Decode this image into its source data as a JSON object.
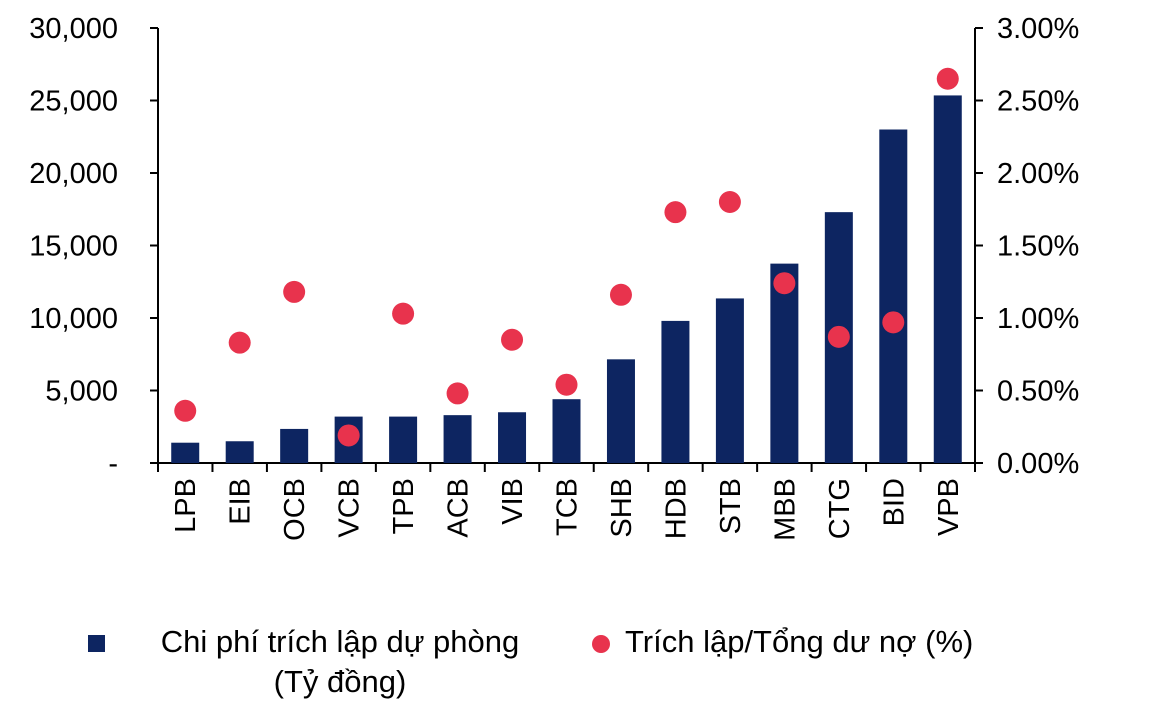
{
  "chart_data": {
    "type": "bar",
    "categories": [
      "LPB",
      "EIB",
      "OCB",
      "VCB",
      "TPB",
      "ACB",
      "VIB",
      "TCB",
      "SHB",
      "HDB",
      "STB",
      "MBB",
      "CTG",
      "BID",
      "VPB"
    ],
    "series": [
      {
        "name": "Chi phí trích lập dự phòng (Tỷ đồng)",
        "type": "bar",
        "axis": "left",
        "color": "#0d2561",
        "values": [
          1400,
          1500,
          2350,
          3200,
          3200,
          3300,
          3500,
          4400,
          7150,
          9800,
          11350,
          13750,
          17300,
          23000,
          25350
        ]
      },
      {
        "name": "Trích lập/Tổng dư nợ (%)",
        "type": "scatter",
        "axis": "right",
        "color": "#e8334d",
        "values": [
          0.36,
          0.83,
          1.18,
          0.19,
          1.03,
          0.48,
          0.85,
          0.54,
          1.16,
          1.73,
          1.8,
          1.24,
          0.87,
          0.97,
          2.65
        ]
      }
    ],
    "y_left": {
      "ylim": [
        0,
        30000
      ],
      "ticks": [
        0,
        5000,
        10000,
        15000,
        20000,
        25000,
        30000
      ],
      "tick_labels": [
        "-",
        "5,000",
        "10,000",
        "15,000",
        "20,000",
        "25,000",
        "30,000"
      ]
    },
    "y_right": {
      "ylim": [
        0,
        3.0
      ],
      "ticks": [
        0,
        0.5,
        1.0,
        1.5,
        2.0,
        2.5,
        3.0
      ],
      "tick_labels": [
        "0.00%",
        "0.50%",
        "1.00%",
        "1.50%",
        "2.00%",
        "2.50%",
        "3.00%"
      ]
    },
    "grid": false,
    "legend_position": "bottom",
    "legend": {
      "bar_label_line1": "Chi phí trích lập dự phòng",
      "bar_label_line2": "(Tỷ đồng)",
      "dot_label": "Trích lập/Tổng dư nợ (%)"
    }
  }
}
